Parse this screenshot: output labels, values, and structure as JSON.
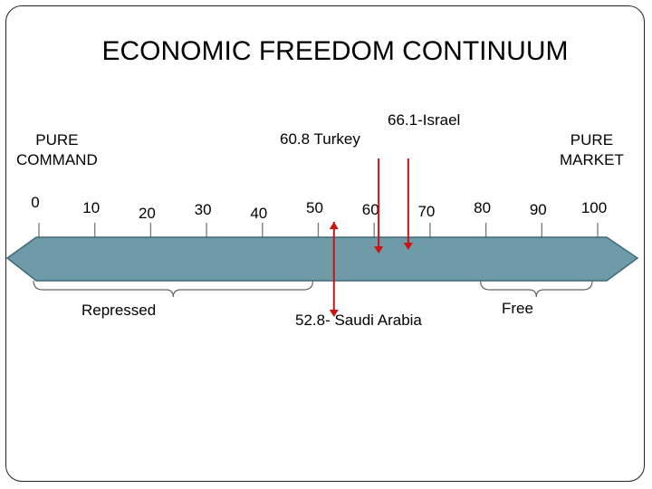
{
  "title": "ECONOMIC FREEDOM CONTINUUM",
  "left_pole": {
    "line1": "PURE",
    "line2": "COMMAND"
  },
  "right_pole": {
    "line1": "PURE",
    "line2": "MARKET"
  },
  "scale": {
    "ticks": [
      {
        "value": 0,
        "label": "0"
      },
      {
        "value": 10,
        "label": "10"
      },
      {
        "value": 20,
        "label": "20"
      },
      {
        "value": 30,
        "label": "30"
      },
      {
        "value": 40,
        "label": "40"
      },
      {
        "value": 50,
        "label": "50"
      },
      {
        "value": 60,
        "label": "60"
      },
      {
        "value": 70,
        "label": "70"
      },
      {
        "value": 80,
        "label": "80"
      },
      {
        "value": 90,
        "label": "90"
      },
      {
        "value": 100,
        "label": "100"
      }
    ]
  },
  "countries": [
    {
      "name": "Turkey",
      "score": 60.8,
      "label": "60.8 Turkey"
    },
    {
      "name": "Israel",
      "score": 66.1,
      "label": "66.1-Israel"
    },
    {
      "name": "Saudi Arabia",
      "score": 52.8,
      "label": "52.8- Saudi Arabia"
    }
  ],
  "ranges": [
    {
      "label": "Repressed",
      "from": 0,
      "to": 50
    },
    {
      "label": "Free",
      "from": 80,
      "to": 100
    }
  ],
  "colors": {
    "arrow": "#6f9aa8",
    "arrow_border": "#3d6a7a",
    "marker": "#cc1111"
  }
}
